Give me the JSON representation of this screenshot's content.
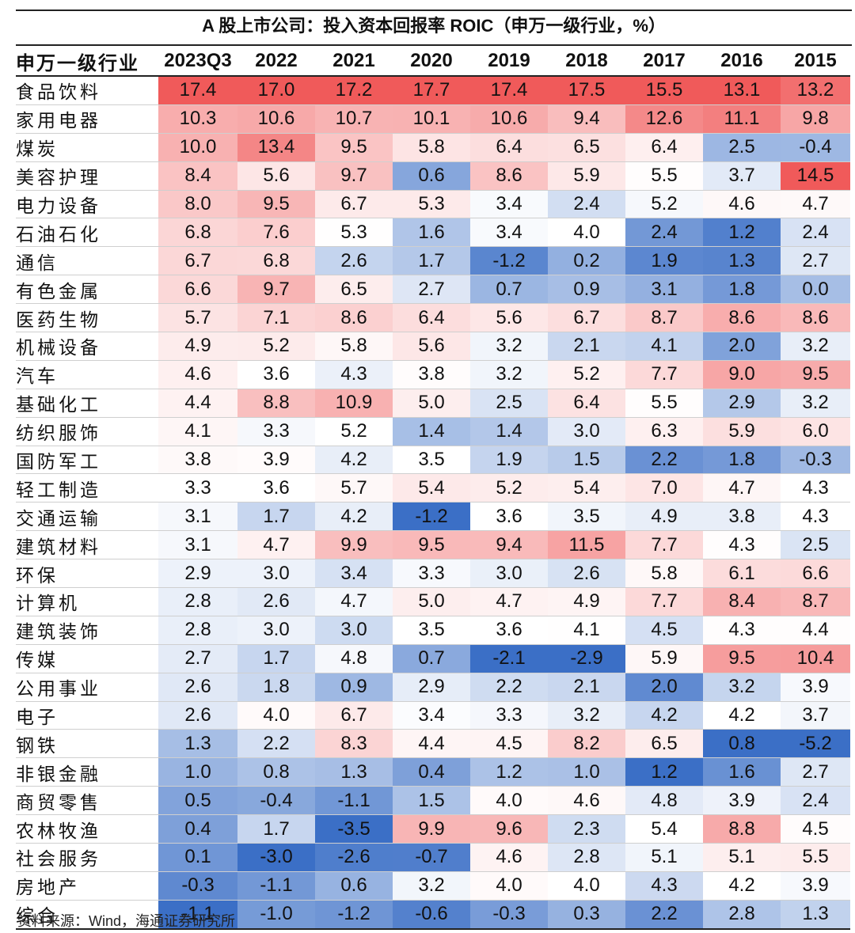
{
  "title": "A 股上市公司：投入资本回报率 ROIC（申万一级行业，%）",
  "source": "资料来源：Wind，海通证券研究所",
  "colors": {
    "high": "#f05a5a",
    "low": "#3b6fc6",
    "mid": "#ffffff"
  },
  "chart_data": {
    "type": "heatmap",
    "title": "A 股上市公司：投入资本回报率 ROIC（申万一级行业，%）",
    "row_header": "申万一级行业",
    "columns": [
      "2023Q3",
      "2022",
      "2021",
      "2020",
      "2019",
      "2018",
      "2017",
      "2016",
      "2015"
    ],
    "color_scale": "per-column, red = high, blue = low",
    "rows": [
      {
        "name": "食品饮料",
        "values": [
          17.4,
          17.0,
          17.2,
          17.7,
          17.4,
          17.5,
          15.5,
          13.1,
          13.2
        ]
      },
      {
        "name": "家用电器",
        "values": [
          10.3,
          10.6,
          10.7,
          10.1,
          10.6,
          9.4,
          12.6,
          11.1,
          9.8
        ]
      },
      {
        "name": "煤炭",
        "values": [
          10.0,
          13.4,
          9.5,
          5.8,
          6.4,
          6.5,
          6.4,
          2.5,
          -0.4
        ]
      },
      {
        "name": "美容护理",
        "values": [
          8.4,
          5.6,
          9.7,
          0.6,
          8.6,
          5.9,
          5.5,
          3.7,
          14.5
        ]
      },
      {
        "name": "电力设备",
        "values": [
          8.0,
          9.5,
          6.7,
          5.3,
          3.4,
          2.4,
          5.2,
          4.6,
          4.7
        ]
      },
      {
        "name": "石油石化",
        "values": [
          6.8,
          7.6,
          5.3,
          1.6,
          3.4,
          4.0,
          2.4,
          1.2,
          2.4
        ]
      },
      {
        "name": "通信",
        "values": [
          6.7,
          6.8,
          2.6,
          1.7,
          -1.2,
          0.2,
          1.9,
          1.3,
          2.7
        ]
      },
      {
        "name": "有色金属",
        "values": [
          6.6,
          9.7,
          6.5,
          2.7,
          0.7,
          0.9,
          3.1,
          1.8,
          0.0
        ]
      },
      {
        "name": "医药生物",
        "values": [
          5.7,
          7.1,
          8.6,
          6.4,
          5.6,
          6.7,
          8.7,
          8.6,
          8.6
        ]
      },
      {
        "name": "机械设备",
        "values": [
          4.9,
          5.2,
          5.8,
          5.6,
          3.2,
          2.1,
          4.1,
          2.0,
          3.2
        ]
      },
      {
        "name": "汽车",
        "values": [
          4.6,
          3.6,
          4.3,
          3.8,
          3.2,
          5.2,
          7.7,
          9.0,
          9.5
        ]
      },
      {
        "name": "基础化工",
        "values": [
          4.4,
          8.8,
          10.9,
          5.0,
          2.5,
          6.4,
          5.5,
          2.9,
          3.2
        ]
      },
      {
        "name": "纺织服饰",
        "values": [
          4.1,
          3.3,
          5.2,
          1.4,
          1.4,
          3.0,
          6.3,
          5.9,
          6.0
        ]
      },
      {
        "name": "国防军工",
        "values": [
          3.8,
          3.9,
          4.2,
          3.5,
          1.9,
          1.5,
          2.2,
          1.8,
          -0.3
        ]
      },
      {
        "name": "轻工制造",
        "values": [
          3.3,
          3.6,
          5.7,
          5.4,
          5.2,
          5.4,
          7.0,
          4.7,
          4.3
        ]
      },
      {
        "name": "交通运输",
        "values": [
          3.1,
          1.7,
          4.2,
          -1.2,
          3.6,
          3.5,
          4.9,
          3.8,
          4.3
        ]
      },
      {
        "name": "建筑材料",
        "values": [
          3.1,
          4.7,
          9.9,
          9.5,
          9.4,
          11.5,
          7.7,
          4.3,
          2.5
        ]
      },
      {
        "name": "环保",
        "values": [
          2.9,
          3.0,
          3.4,
          3.3,
          3.0,
          2.6,
          5.8,
          6.1,
          6.6
        ]
      },
      {
        "name": "计算机",
        "values": [
          2.8,
          2.6,
          4.7,
          5.0,
          4.7,
          4.9,
          7.7,
          8.4,
          8.7
        ]
      },
      {
        "name": "建筑装饰",
        "values": [
          2.8,
          3.0,
          3.0,
          3.5,
          3.6,
          4.1,
          4.5,
          4.3,
          4.4
        ]
      },
      {
        "name": "传媒",
        "values": [
          2.7,
          1.7,
          4.8,
          0.7,
          -2.1,
          -2.9,
          5.9,
          9.5,
          10.4
        ]
      },
      {
        "name": "公用事业",
        "values": [
          2.6,
          1.8,
          0.9,
          2.9,
          2.2,
          2.1,
          2.0,
          3.2,
          3.9
        ]
      },
      {
        "name": "电子",
        "values": [
          2.6,
          4.0,
          6.7,
          3.4,
          3.3,
          3.2,
          4.2,
          4.2,
          3.7
        ]
      },
      {
        "name": "钢铁",
        "values": [
          1.3,
          2.2,
          8.3,
          4.4,
          4.5,
          8.2,
          6.5,
          0.8,
          -5.2
        ]
      },
      {
        "name": "非银金融",
        "values": [
          1.0,
          0.8,
          1.3,
          0.4,
          1.2,
          1.0,
          1.2,
          1.6,
          2.7
        ]
      },
      {
        "name": "商贸零售",
        "values": [
          0.5,
          -0.4,
          -1.1,
          1.5,
          4.0,
          4.6,
          4.8,
          3.9,
          2.4
        ]
      },
      {
        "name": "农林牧渔",
        "values": [
          0.4,
          1.7,
          -3.5,
          9.9,
          9.6,
          2.3,
          5.4,
          8.8,
          4.5
        ]
      },
      {
        "name": "社会服务",
        "values": [
          0.1,
          -3.0,
          -2.6,
          -0.7,
          4.6,
          2.8,
          5.1,
          5.1,
          5.5
        ]
      },
      {
        "name": "房地产",
        "values": [
          -0.3,
          -1.1,
          0.6,
          3.2,
          4.0,
          4.0,
          4.3,
          4.2,
          3.9
        ]
      },
      {
        "name": "综合",
        "values": [
          -1.1,
          -1.0,
          -1.2,
          -0.6,
          -0.3,
          0.3,
          2.2,
          2.8,
          1.3
        ]
      }
    ]
  }
}
